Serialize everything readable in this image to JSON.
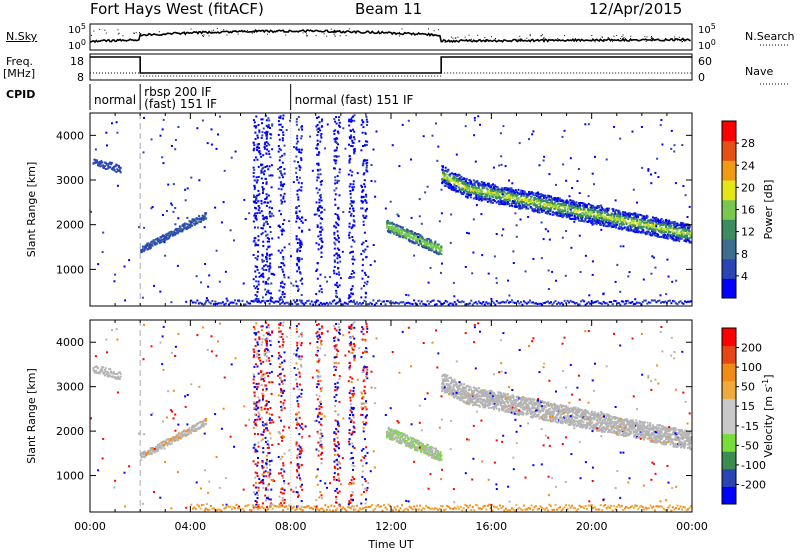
{
  "header": {
    "station": "Fort Hays West (fitACF)",
    "beam": "Beam 11",
    "date": "12/Apr/2015"
  },
  "top_panels": {
    "nsky_label": "N.Sky",
    "nsky_ticks": [
      "10^5",
      "10^0"
    ],
    "nsearch_label": "N.Search",
    "nsearch_ticks": [
      "10^5",
      "10^0"
    ],
    "freq_label": "Freq.",
    "freq_unit": "[MHz]",
    "freq_ticks": [
      "18",
      "8"
    ],
    "nave_label": "Nave",
    "nave_ticks": [
      "60",
      "0"
    ],
    "cpid_label": "CPID",
    "cpid_segments": [
      {
        "start": 0,
        "end": 2,
        "lines": [
          "normal"
        ]
      },
      {
        "start": 2,
        "end": 8,
        "lines": [
          "rbsp 200 IF",
          "(fast) 151 IF"
        ]
      },
      {
        "start": 8,
        "end": 24,
        "lines": [
          "normal (fast) 151 IF"
        ]
      }
    ]
  },
  "colors": {
    "power_scale": [
      "#0000ff",
      "#2a46b4",
      "#3c6e90",
      "#3c8c60",
      "#78c850",
      "#e6e614",
      "#f09b14",
      "#e65014",
      "#ff0000"
    ],
    "velocity_scale": [
      "#ff0000",
      "#e64614",
      "#f08c14",
      "#f0aa3c",
      "#c8c8c8",
      "#c8c8c8",
      "#78dc3c",
      "#3c8c50",
      "#2a46b4",
      "#0000ff"
    ],
    "ground_scatter": "#b4b4b4"
  },
  "chart_data": [
    {
      "type": "heatmap",
      "name": "power",
      "ylabel": "Slant Range [km]",
      "xlabel": "Time UT",
      "xlim": [
        0,
        24
      ],
      "ylim": [
        180,
        4500
      ],
      "x_ticks": [
        "00:00",
        "04:00",
        "08:00",
        "12:00",
        "16:00",
        "20:00",
        "00:00"
      ],
      "y_ticks": [
        1000,
        2000,
        3000,
        4000
      ],
      "colorbar": {
        "label": "Power [dB]",
        "ticks": [
          4,
          8,
          12,
          16,
          20,
          24,
          28
        ],
        "range": [
          0,
          30
        ]
      },
      "features": [
        {
          "time": [
            0.1,
            1.2
          ],
          "range": [
            3150,
            3500
          ],
          "power": 5
        },
        {
          "time": [
            2.0,
            4.6
          ],
          "range": [
            1400,
            2300
          ],
          "power": 7
        },
        {
          "time": [
            11.8,
            14.0
          ],
          "range": [
            1300,
            2000
          ],
          "power": 12
        },
        {
          "time": [
            14.0,
            24.0
          ],
          "range": [
            1500,
            3400
          ],
          "power": 14
        }
      ]
    },
    {
      "type": "heatmap",
      "name": "velocity",
      "ylabel": "Slant Range [km]",
      "xlabel": "Time UT",
      "xlim": [
        0,
        24
      ],
      "ylim": [
        180,
        4500
      ],
      "x_ticks": [
        "00:00",
        "04:00",
        "08:00",
        "12:00",
        "16:00",
        "20:00",
        "00:00"
      ],
      "y_ticks": [
        1000,
        2000,
        3000,
        4000
      ],
      "colorbar": {
        "label": "Velocity [m s^-1]",
        "ticks": [
          "200",
          "100",
          "50",
          "15",
          "-15",
          "-50",
          "-100",
          "-200"
        ],
        "range": [
          -250,
          250
        ]
      }
    }
  ]
}
